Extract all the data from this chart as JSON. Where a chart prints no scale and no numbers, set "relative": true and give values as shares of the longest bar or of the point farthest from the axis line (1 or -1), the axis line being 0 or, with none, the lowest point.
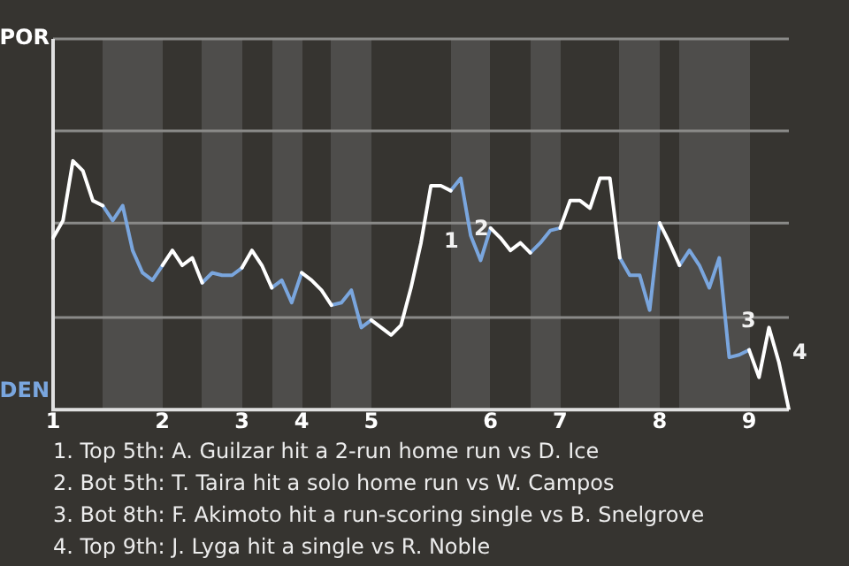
{
  "chart_data": {
    "type": "line",
    "relative": true,
    "categories": [
      "1",
      null,
      null,
      null,
      null,
      null,
      null,
      null,
      null,
      null,
      null,
      "2",
      null,
      null,
      null,
      null,
      null,
      null,
      null,
      "3",
      null,
      null,
      null,
      null,
      null,
      "4",
      null,
      null,
      null,
      null,
      null,
      null,
      "5",
      null,
      null,
      null,
      null,
      null,
      null,
      null,
      null,
      null,
      null,
      null,
      "6",
      null,
      null,
      null,
      null,
      null,
      null,
      "7",
      null,
      null,
      null,
      null,
      null,
      null,
      null,
      null,
      null,
      "8",
      null,
      null,
      null,
      null,
      null,
      null,
      null,
      null,
      "9",
      null,
      null,
      null,
      null
    ],
    "series": [
      {
        "color": "#ffffff",
        "values": [
          0.69,
          0.76,
          1,
          0.96,
          0.84,
          0.82,
          null,
          null,
          null,
          null,
          null,
          0.58,
          0.64,
          0.58,
          0.61,
          0.51,
          null,
          null,
          null,
          0.57,
          0.64,
          0.58,
          0.49,
          null,
          null,
          0.55,
          0.52,
          0.48,
          0.42,
          null,
          null,
          null,
          0.36,
          0.33,
          0.3,
          0.34,
          0.49,
          0.67,
          0.9,
          0.9,
          0.88,
          null,
          null,
          null,
          0.73,
          0.69,
          0.64,
          0.67,
          0.63,
          null,
          null,
          0.73,
          0.84,
          0.84,
          0.81,
          0.93,
          0.93,
          0.61,
          null,
          null,
          null,
          0.75,
          0.67,
          0.58,
          null,
          null,
          null,
          null,
          null,
          null,
          0.24,
          0.13,
          0.33,
          0.19,
          0
        ]
      },
      {
        "color": "#7aa6de",
        "values": [
          null,
          null,
          null,
          null,
          null,
          0.82,
          0.76,
          0.82,
          0.64,
          0.55,
          0.52,
          0.58,
          null,
          null,
          null,
          0.51,
          0.55,
          0.54,
          0.54,
          0.57,
          null,
          null,
          0.49,
          0.52,
          0.43,
          0.55,
          null,
          null,
          0.42,
          0.43,
          0.48,
          0.33,
          0.36,
          null,
          null,
          null,
          null,
          null,
          null,
          null,
          0.88,
          0.93,
          0.7,
          0.6,
          0.73,
          null,
          null,
          null,
          0.63,
          0.67,
          0.72,
          0.73,
          null,
          null,
          null,
          null,
          null,
          0.61,
          0.54,
          0.54,
          0.4,
          0.75,
          null,
          0.58,
          0.64,
          0.58,
          0.49,
          0.61,
          0.21,
          0.22,
          0.24,
          null,
          null,
          null,
          null
        ]
      }
    ],
    "ref_lines": [
      {
        "axis": "y",
        "value": 0.37
      },
      {
        "axis": "y",
        "value": 0.75
      },
      {
        "axis": "y",
        "value": 1.12
      },
      {
        "axis": "y",
        "value": 1.49
      }
    ],
    "legend": false,
    "marker": "none",
    "line_style": "solid",
    "annotations": [
      "POR",
      "DEN",
      "1",
      "2",
      "3",
      "4",
      "1. Top 5th: A. Guilzar hit a 2-run home run vs D. Ice",
      "2. Bot 5th: T. Taira hit a solo home run vs W. Campos",
      "3. Bot 8th: F. Akimoto hit a run-scoring single vs B. Snelgrove",
      "4. Top 9th: J. Lyga hit a single vs R. Noble"
    ]
  }
}
